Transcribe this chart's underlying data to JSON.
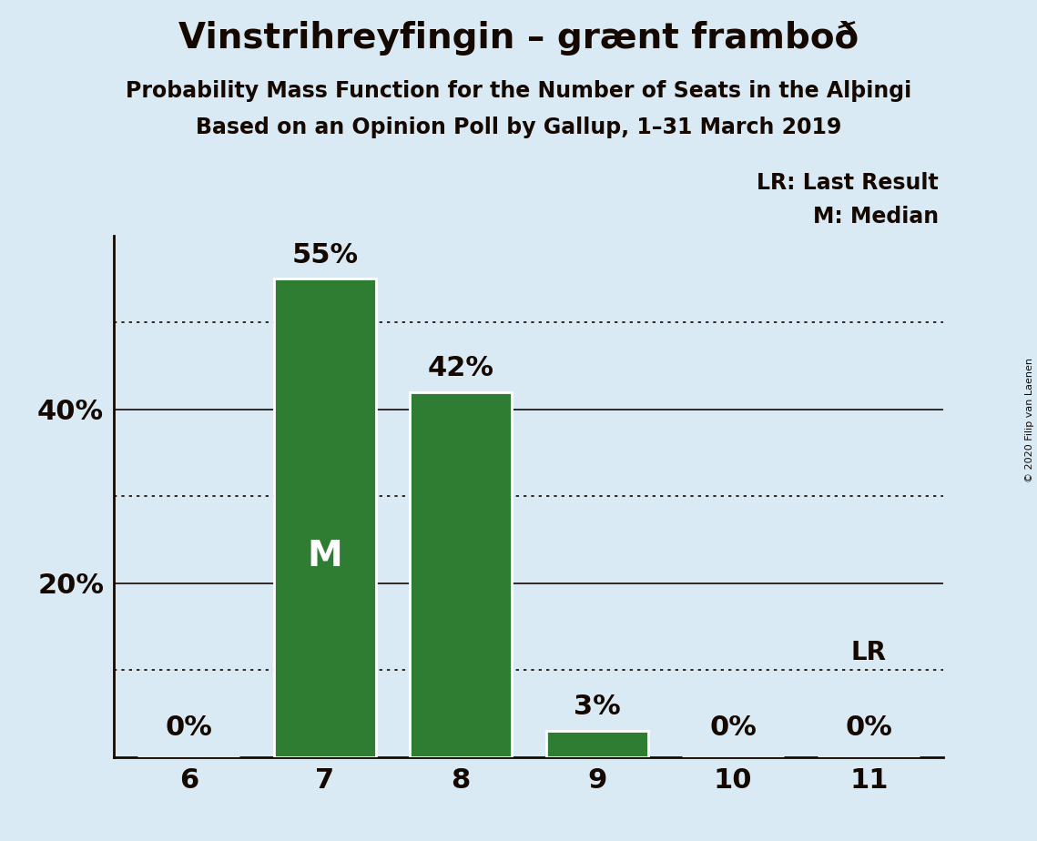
{
  "title": "Vinstrihreyfingin – grænt framboð",
  "subtitle1": "Probability Mass Function for the Number of Seats in the Alþingi",
  "subtitle2": "Based on an Opinion Poll by Gallup, 1–31 March 2019",
  "copyright": "© 2020 Filip van Laenen",
  "categories": [
    6,
    7,
    8,
    9,
    10,
    11
  ],
  "values": [
    0,
    55,
    42,
    3,
    0,
    0
  ],
  "bar_color": "#2e7d32",
  "bar_edge_color": "#ffffff",
  "median_bar_index": 1,
  "lr_bar_index": 5,
  "lr_label": "LR",
  "background_color": "#daeaf5",
  "ylim": [
    0,
    60
  ],
  "solid_gridlines": [
    20,
    40
  ],
  "dotted_gridlines": [
    10,
    30,
    50
  ],
  "legend_lr": "LR: Last Result",
  "legend_m": "M: Median",
  "title_fontsize": 28,
  "subtitle_fontsize": 17,
  "tick_fontsize": 22,
  "bar_label_fontsize": 22,
  "legend_fontsize": 17,
  "median_fontsize": 28,
  "lr_annotation_fontsize": 20,
  "bar_width": 0.75
}
